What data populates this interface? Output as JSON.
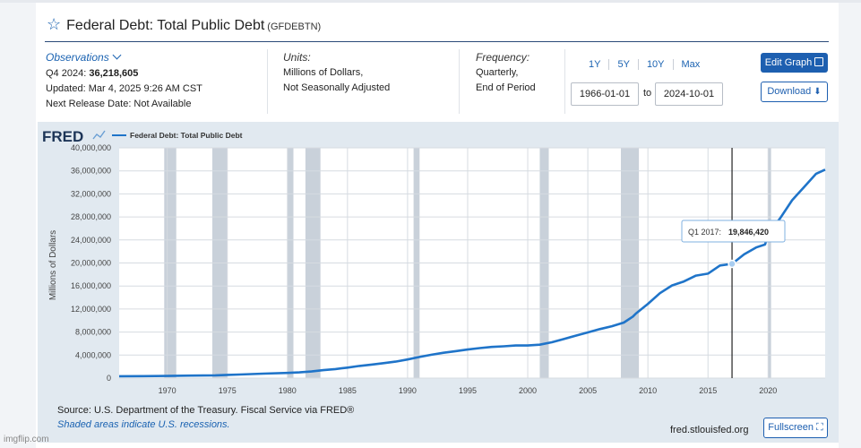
{
  "header": {
    "title": "Federal Debt: Total Public Debt",
    "series_id": "(GFDEBTN)",
    "star_icon": "star-icon"
  },
  "observations": {
    "label": "Observations",
    "latest_period": "Q4 2024:",
    "latest_value": "36,218,605",
    "updated": "Updated: Mar 4, 2025 9:26 AM CST",
    "next_release": "Next Release Date: Not Available"
  },
  "units": {
    "label": "Units:",
    "line1": "Millions of Dollars,",
    "line2": "Not Seasonally Adjusted"
  },
  "frequency": {
    "label": "Frequency:",
    "line1": "Quarterly,",
    "line2": "End of Period"
  },
  "range": {
    "links": [
      "1Y",
      "5Y",
      "10Y",
      "Max"
    ],
    "start": "1966-01-01",
    "to": "to",
    "end": "2024-10-01"
  },
  "buttons": {
    "edit_graph": "Edit Graph",
    "download": "Download",
    "fullscreen": "Fullscreen"
  },
  "footer": {
    "source": "Source: U.S. Department of the Treasury. Fiscal Service via FRED®",
    "shaded_note": "Shaded areas indicate U.S. recessions.",
    "url": "fred.stlouisfed.org"
  },
  "watermark": "imgflip.com",
  "colors": {
    "line": "#1f74c9",
    "recession": "#c9d1da",
    "panel": "#e1e9f0",
    "accent": "#1d5fb0"
  },
  "chart_data": {
    "type": "line",
    "brand": "FRED",
    "legend": "Federal Debt: Total Public Debt",
    "legend_position": "top-left",
    "ylabel": "Millions of Dollars",
    "xlabel": "",
    "xlim": [
      1966.0,
      2024.75
    ],
    "ylim": [
      0,
      40000000
    ],
    "y_ticks": [
      0,
      4000000,
      8000000,
      12000000,
      16000000,
      20000000,
      24000000,
      28000000,
      32000000,
      36000000,
      40000000
    ],
    "y_tick_labels": [
      "0",
      "4,000,000",
      "8,000,000",
      "12,000,000",
      "16,000,000",
      "20,000,000",
      "24,000,000",
      "28,000,000",
      "32,000,000",
      "36,000,000",
      "40,000,000"
    ],
    "x_ticks": [
      1970,
      1975,
      1980,
      1985,
      1990,
      1995,
      2000,
      2005,
      2010,
      2015,
      2020
    ],
    "x_tick_labels": [
      "1970",
      "1975",
      "1980",
      "1985",
      "1990",
      "1995",
      "2000",
      "2005",
      "2010",
      "2015",
      "2020"
    ],
    "grid": true,
    "recessions": [
      [
        1969.75,
        1970.75
      ],
      [
        1973.75,
        1975.0
      ],
      [
        1980.0,
        1980.5
      ],
      [
        1981.5,
        1982.75
      ],
      [
        1990.5,
        1991.0
      ],
      [
        2001.0,
        2001.75
      ],
      [
        2007.75,
        2009.25
      ],
      [
        2020.0,
        2020.25
      ]
    ],
    "series": [
      {
        "x": [
          1966.0,
          1968.0,
          1970.0,
          1972.0,
          1974.0,
          1975.0,
          1976.0,
          1978.0,
          1980.0,
          1981.0,
          1982.0,
          1983.0,
          1984.0,
          1985.0,
          1986.0,
          1987.0,
          1988.0,
          1989.0,
          1990.0,
          1991.0,
          1992.0,
          1993.0,
          1994.0,
          1995.0,
          1996.0,
          1997.0,
          1998.0,
          1999.0,
          2000.0,
          2001.0,
          2002.0,
          2003.0,
          2004.0,
          2005.0,
          2006.0,
          2007.0,
          2008.0,
          2008.75,
          2009.0,
          2010.0,
          2011.0,
          2012.0,
          2013.0,
          2014.0,
          2015.0,
          2016.0,
          2017.0,
          2018.0,
          2019.0,
          2019.75,
          2020.25,
          2020.75,
          2021.0,
          2022.0,
          2023.0,
          2024.0,
          2024.75
        ],
        "values": [
          320000,
          350000,
          380000,
          430000,
          480000,
          560000,
          630000,
          780000,
          910000,
          1000000,
          1150000,
          1380000,
          1570000,
          1820000,
          2120000,
          2350000,
          2600000,
          2860000,
          3230000,
          3670000,
          4060000,
          4410000,
          4690000,
          4970000,
          5220000,
          5410000,
          5530000,
          5660000,
          5670000,
          5810000,
          6230000,
          6780000,
          7380000,
          7930000,
          8510000,
          9010000,
          9650000,
          10700000,
          11200000,
          12900000,
          14750000,
          16100000,
          16800000,
          17800000,
          18150000,
          19570000,
          19846420,
          21500000,
          22700000,
          23200000,
          26480000,
          27100000,
          27750000,
          30900000,
          33200000,
          35500000,
          36218605
        ]
      }
    ],
    "tooltip": {
      "x": 2017.0,
      "period_label": "Q1 2017:",
      "value_label": "19,846,420"
    }
  }
}
